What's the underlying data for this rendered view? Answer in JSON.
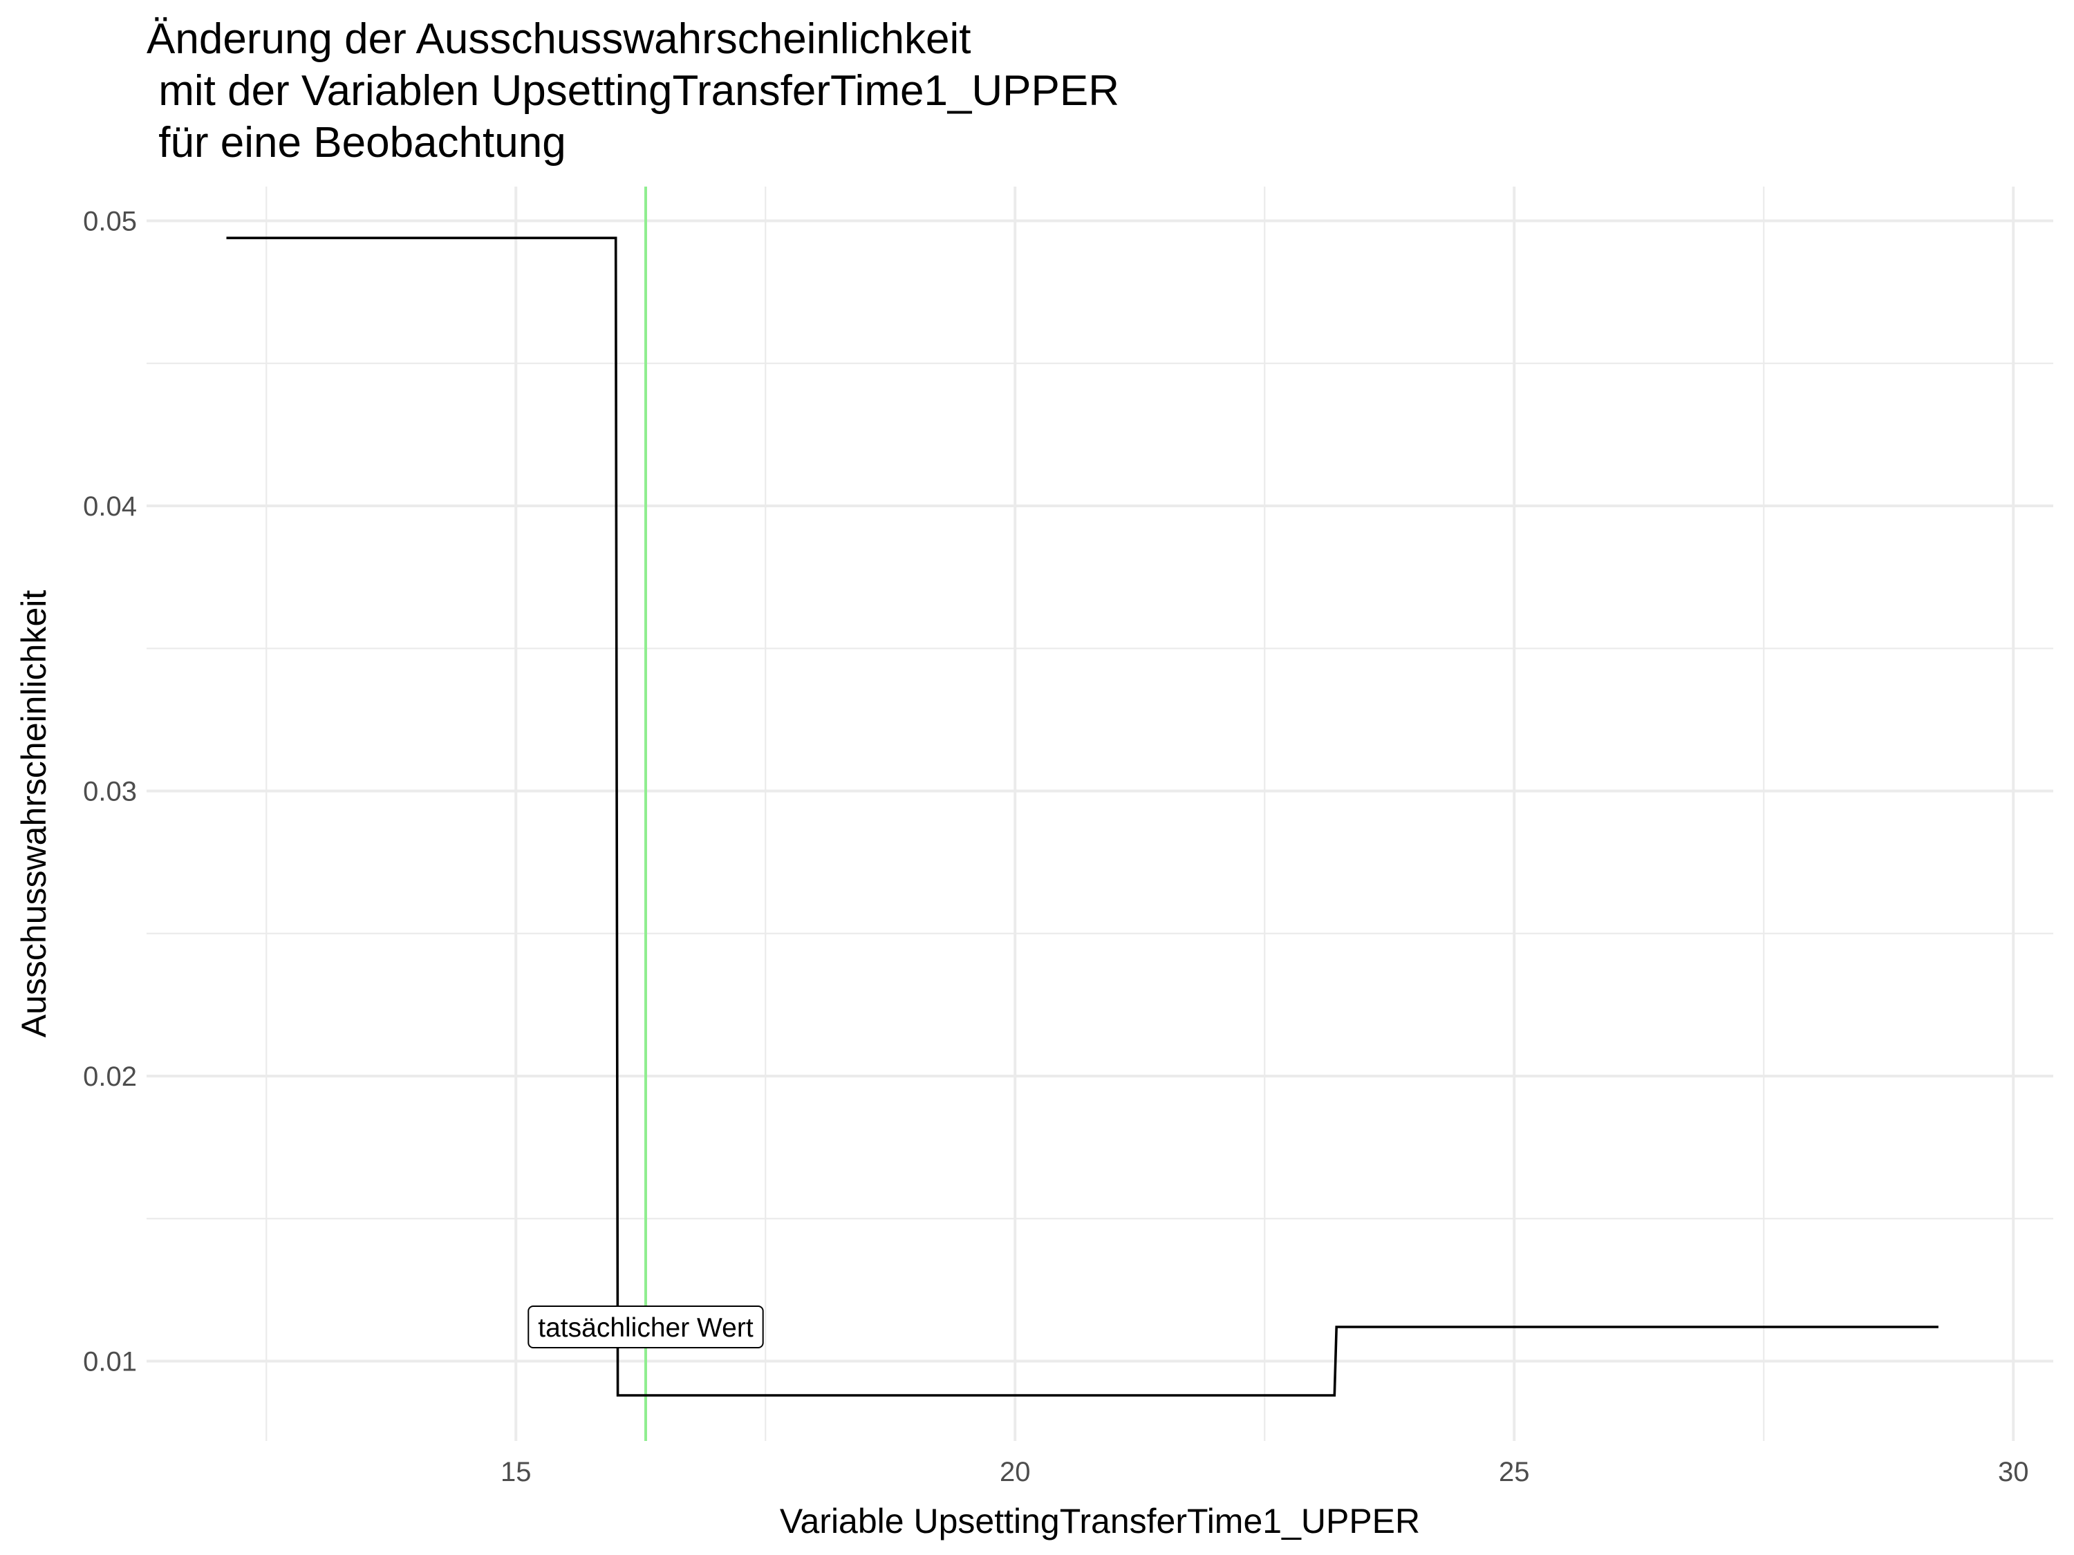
{
  "chart_data": {
    "type": "line",
    "line_shape": "step",
    "title_lines": [
      "Änderung der Ausschusswahrscheinlichkeit",
      " mit der Variablen UpsettingTransferTime1_UPPER",
      " für eine Beobachtung"
    ],
    "xlabel": "Variable UpsettingTransferTime1_UPPER",
    "ylabel": "Ausschusswahrscheinlichkeit",
    "xlim": [
      11.3,
      30.4
    ],
    "ylim": [
      0.0072,
      0.0512
    ],
    "x_ticks": [
      15,
      20,
      25,
      30
    ],
    "x_tick_labels": [
      "15",
      "20",
      "25",
      "30"
    ],
    "y_ticks": [
      0.01,
      0.02,
      0.03,
      0.04,
      0.05
    ],
    "y_tick_labels": [
      "0.01",
      "0.02",
      "0.03",
      "0.04",
      "0.05"
    ],
    "grid": true,
    "series": [
      {
        "color": "#000000",
        "x": [
          12.1,
          16.0,
          16.02,
          23.2,
          23.22,
          29.25
        ],
        "y": [
          0.0494,
          0.0494,
          0.0088,
          0.0088,
          0.0112,
          0.0112
        ]
      }
    ],
    "reference_line": {
      "x": 16.3,
      "color": "#90ee90"
    },
    "annotation": {
      "text": "tatsächlicher Wert",
      "x": 16.3,
      "y": 0.0112
    }
  }
}
